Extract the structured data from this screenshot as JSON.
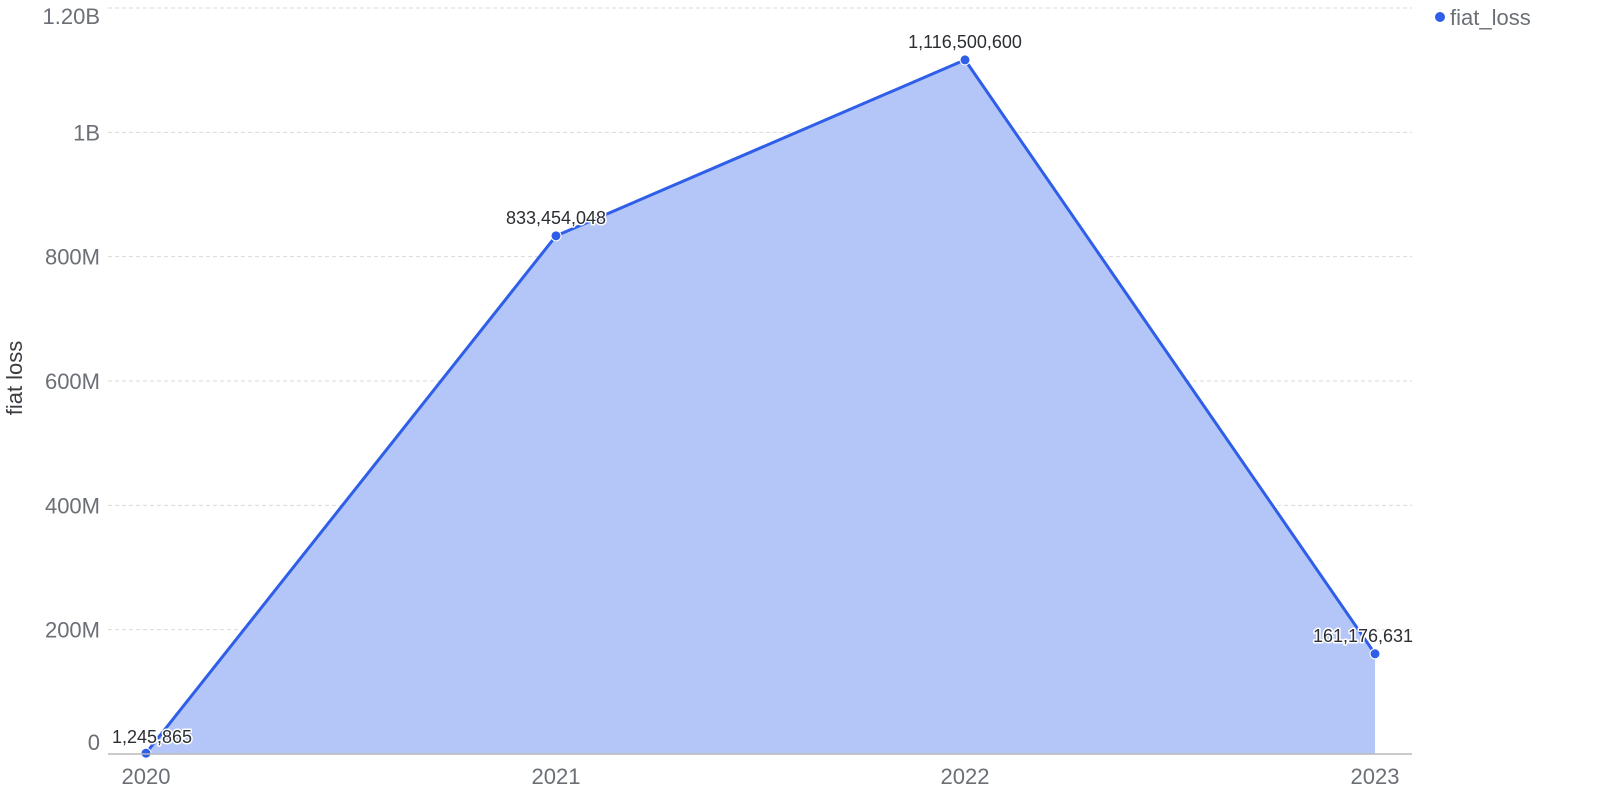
{
  "chart_data": {
    "type": "area",
    "x": [
      "2020",
      "2021",
      "2022",
      "2023"
    ],
    "series": [
      {
        "name": "fiat_loss",
        "values": [
          1245865,
          833454048,
          1116500600,
          161176631
        ]
      }
    ],
    "data_labels": [
      "1,245,865",
      "833,454,048",
      "1,116,500,600",
      "161,176,631"
    ],
    "ylabel": "fiat loss",
    "ylim": [
      0,
      1200000000
    ],
    "yticks": [
      0,
      200000000,
      400000000,
      600000000,
      800000000,
      1000000000,
      1200000000
    ],
    "ytick_labels": [
      "0",
      "200M",
      "400M",
      "600M",
      "800M",
      "1B",
      "1.20B"
    ],
    "grid": true,
    "legend_position": "top-right",
    "colors": {
      "line": "#2f5fe8",
      "fill": "#b4c6f7",
      "grid": "#d9d9d9",
      "axis": "#b8b8b8"
    }
  }
}
